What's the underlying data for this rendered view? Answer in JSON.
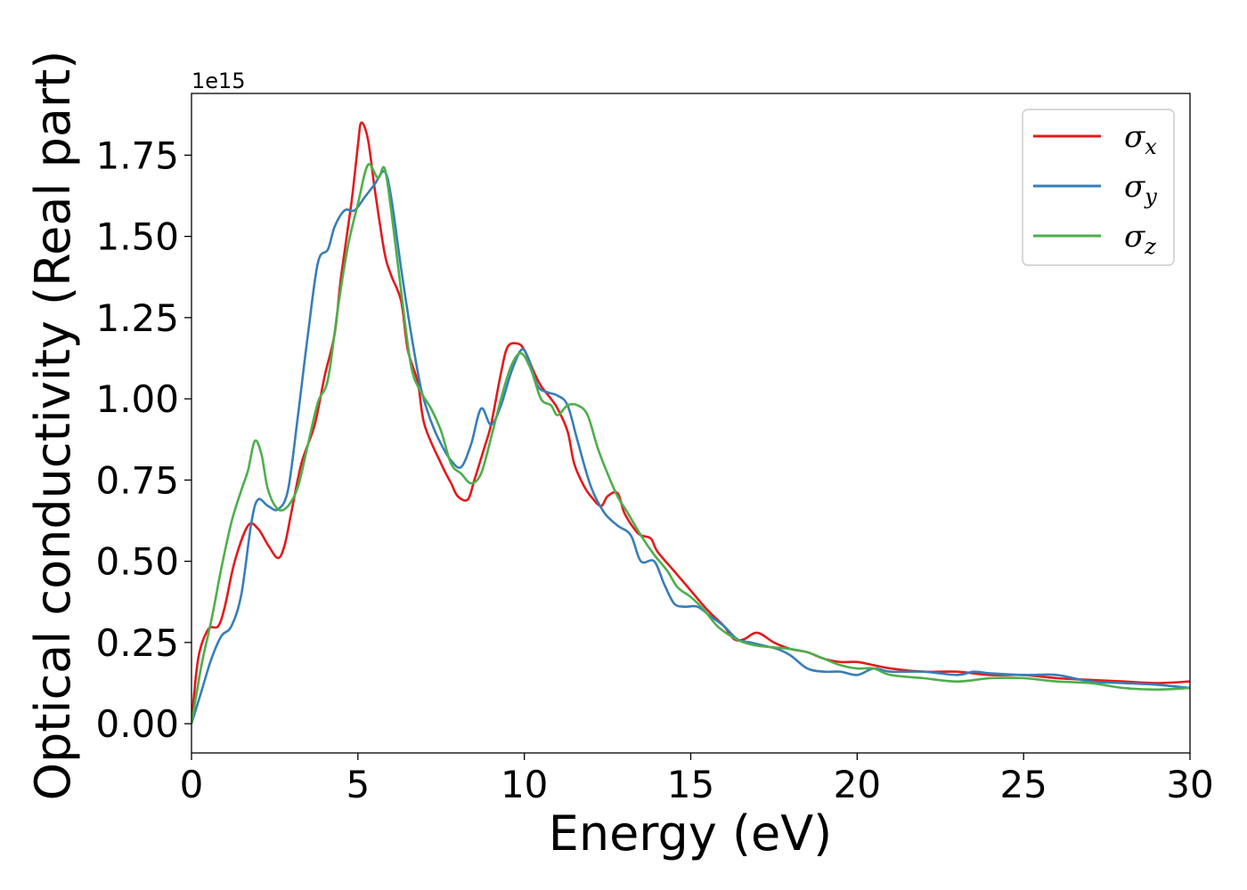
{
  "chart_data": {
    "type": "line",
    "title": "",
    "xlabel": "Energy (eV)",
    "ylabel": "Optical conductivity (Real part)",
    "y_offset_text": "1e15",
    "xlim": [
      0,
      30
    ],
    "ylim": [
      -0.09,
      1.94
    ],
    "x_ticks": [
      0,
      5,
      10,
      15,
      20,
      25,
      30
    ],
    "y_ticks": [
      0.0,
      0.25,
      0.5,
      0.75,
      1.0,
      1.25,
      1.5,
      1.75
    ],
    "x_tick_labels": [
      "0",
      "5",
      "10",
      "15",
      "20",
      "25",
      "30"
    ],
    "y_tick_labels": [
      "0.00",
      "0.25",
      "0.50",
      "0.75",
      "1.00",
      "1.25",
      "1.50",
      "1.75"
    ],
    "grid": false,
    "legend_position": "top-right",
    "series": [
      {
        "name": "σx",
        "symbol": "σ",
        "subscript": "x",
        "color": "#e41a1c",
        "points": [
          [
            0,
            0.0
          ],
          [
            0.2,
            0.2
          ],
          [
            0.5,
            0.29
          ],
          [
            0.8,
            0.3
          ],
          [
            1.0,
            0.36
          ],
          [
            1.3,
            0.5
          ],
          [
            1.7,
            0.61
          ],
          [
            2.0,
            0.6
          ],
          [
            2.3,
            0.55
          ],
          [
            2.6,
            0.51
          ],
          [
            2.8,
            0.55
          ],
          [
            3.0,
            0.65
          ],
          [
            3.3,
            0.8
          ],
          [
            3.7,
            0.92
          ],
          [
            4.0,
            1.07
          ],
          [
            4.3,
            1.2
          ],
          [
            4.5,
            1.38
          ],
          [
            4.8,
            1.6
          ],
          [
            5.0,
            1.78
          ],
          [
            5.1,
            1.85
          ],
          [
            5.3,
            1.8
          ],
          [
            5.5,
            1.65
          ],
          [
            5.8,
            1.45
          ],
          [
            6.0,
            1.38
          ],
          [
            6.3,
            1.3
          ],
          [
            6.5,
            1.15
          ],
          [
            6.8,
            1.05
          ],
          [
            7.0,
            0.92
          ],
          [
            7.5,
            0.8
          ],
          [
            7.8,
            0.74
          ],
          [
            8.0,
            0.7
          ],
          [
            8.3,
            0.69
          ],
          [
            8.5,
            0.75
          ],
          [
            8.8,
            0.85
          ],
          [
            9.0,
            0.92
          ],
          [
            9.3,
            1.08
          ],
          [
            9.5,
            1.16
          ],
          [
            9.8,
            1.17
          ],
          [
            10.0,
            1.15
          ],
          [
            10.3,
            1.08
          ],
          [
            10.5,
            1.04
          ],
          [
            10.8,
            1.0
          ],
          [
            11.0,
            0.97
          ],
          [
            11.3,
            0.9
          ],
          [
            11.5,
            0.8
          ],
          [
            11.8,
            0.73
          ],
          [
            12.0,
            0.7
          ],
          [
            12.3,
            0.67
          ],
          [
            12.5,
            0.7
          ],
          [
            12.8,
            0.71
          ],
          [
            13.0,
            0.65
          ],
          [
            13.3,
            0.6
          ],
          [
            13.5,
            0.58
          ],
          [
            13.8,
            0.57
          ],
          [
            14.0,
            0.53
          ],
          [
            14.5,
            0.47
          ],
          [
            15.0,
            0.41
          ],
          [
            15.5,
            0.35
          ],
          [
            16.0,
            0.3
          ],
          [
            16.3,
            0.26
          ],
          [
            16.6,
            0.26
          ],
          [
            17.0,
            0.28
          ],
          [
            17.5,
            0.25
          ],
          [
            18.0,
            0.23
          ],
          [
            18.5,
            0.22
          ],
          [
            19.0,
            0.2
          ],
          [
            19.5,
            0.19
          ],
          [
            20.0,
            0.19
          ],
          [
            20.5,
            0.18
          ],
          [
            21.0,
            0.17
          ],
          [
            22.0,
            0.16
          ],
          [
            23.0,
            0.16
          ],
          [
            24.0,
            0.15
          ],
          [
            25.0,
            0.15
          ],
          [
            26.0,
            0.14
          ],
          [
            27.0,
            0.135
          ],
          [
            28.0,
            0.13
          ],
          [
            29.0,
            0.125
          ],
          [
            30.0,
            0.13
          ]
        ]
      },
      {
        "name": "σy",
        "symbol": "σ",
        "subscript": "y",
        "color": "#377eb8",
        "points": [
          [
            0,
            0.0
          ],
          [
            0.3,
            0.1
          ],
          [
            0.6,
            0.2
          ],
          [
            0.9,
            0.27
          ],
          [
            1.2,
            0.3
          ],
          [
            1.5,
            0.4
          ],
          [
            1.8,
            0.62
          ],
          [
            2.0,
            0.69
          ],
          [
            2.3,
            0.67
          ],
          [
            2.6,
            0.66
          ],
          [
            2.9,
            0.72
          ],
          [
            3.2,
            0.95
          ],
          [
            3.5,
            1.2
          ],
          [
            3.8,
            1.42
          ],
          [
            4.1,
            1.46
          ],
          [
            4.3,
            1.53
          ],
          [
            4.6,
            1.58
          ],
          [
            4.9,
            1.58
          ],
          [
            5.2,
            1.62
          ],
          [
            5.5,
            1.66
          ],
          [
            5.8,
            1.7
          ],
          [
            6.0,
            1.62
          ],
          [
            6.3,
            1.4
          ],
          [
            6.6,
            1.2
          ],
          [
            6.9,
            1.03
          ],
          [
            7.2,
            0.93
          ],
          [
            7.5,
            0.86
          ],
          [
            7.8,
            0.81
          ],
          [
            8.1,
            0.79
          ],
          [
            8.4,
            0.86
          ],
          [
            8.7,
            0.97
          ],
          [
            9.0,
            0.92
          ],
          [
            9.3,
            0.98
          ],
          [
            9.6,
            1.08
          ],
          [
            9.9,
            1.15
          ],
          [
            10.1,
            1.13
          ],
          [
            10.4,
            1.04
          ],
          [
            10.7,
            1.02
          ],
          [
            11.0,
            1.01
          ],
          [
            11.3,
            0.98
          ],
          [
            11.6,
            0.87
          ],
          [
            12.0,
            0.73
          ],
          [
            12.4,
            0.65
          ],
          [
            12.8,
            0.61
          ],
          [
            13.2,
            0.58
          ],
          [
            13.5,
            0.5
          ],
          [
            13.9,
            0.5
          ],
          [
            14.2,
            0.43
          ],
          [
            14.5,
            0.37
          ],
          [
            14.8,
            0.36
          ],
          [
            15.2,
            0.36
          ],
          [
            15.6,
            0.33
          ],
          [
            16.0,
            0.3
          ],
          [
            16.4,
            0.26
          ],
          [
            16.8,
            0.25
          ],
          [
            17.2,
            0.24
          ],
          [
            17.6,
            0.23
          ],
          [
            18.0,
            0.21
          ],
          [
            18.5,
            0.17
          ],
          [
            19.0,
            0.16
          ],
          [
            19.5,
            0.16
          ],
          [
            20.0,
            0.15
          ],
          [
            20.5,
            0.17
          ],
          [
            21.0,
            0.16
          ],
          [
            22.0,
            0.16
          ],
          [
            23.0,
            0.15
          ],
          [
            23.5,
            0.16
          ],
          [
            24.0,
            0.155
          ],
          [
            25.0,
            0.15
          ],
          [
            26.0,
            0.15
          ],
          [
            27.0,
            0.13
          ],
          [
            28.0,
            0.125
          ],
          [
            29.0,
            0.12
          ],
          [
            30.0,
            0.11
          ]
        ]
      },
      {
        "name": "σz",
        "symbol": "σ",
        "subscript": "z",
        "color": "#4daf4a",
        "points": [
          [
            0,
            0.0
          ],
          [
            0.3,
            0.18
          ],
          [
            0.6,
            0.32
          ],
          [
            0.9,
            0.48
          ],
          [
            1.2,
            0.62
          ],
          [
            1.5,
            0.72
          ],
          [
            1.7,
            0.78
          ],
          [
            1.9,
            0.87
          ],
          [
            2.1,
            0.83
          ],
          [
            2.3,
            0.72
          ],
          [
            2.6,
            0.66
          ],
          [
            2.9,
            0.67
          ],
          [
            3.2,
            0.73
          ],
          [
            3.5,
            0.86
          ],
          [
            3.8,
            0.99
          ],
          [
            4.1,
            1.06
          ],
          [
            4.4,
            1.28
          ],
          [
            4.7,
            1.47
          ],
          [
            5.0,
            1.6
          ],
          [
            5.3,
            1.72
          ],
          [
            5.6,
            1.68
          ],
          [
            5.8,
            1.71
          ],
          [
            6.0,
            1.58
          ],
          [
            6.3,
            1.33
          ],
          [
            6.6,
            1.1
          ],
          [
            6.9,
            1.02
          ],
          [
            7.2,
            0.97
          ],
          [
            7.5,
            0.9
          ],
          [
            7.8,
            0.8
          ],
          [
            8.1,
            0.77
          ],
          [
            8.4,
            0.74
          ],
          [
            8.7,
            0.77
          ],
          [
            9.0,
            0.88
          ],
          [
            9.3,
            1.0
          ],
          [
            9.6,
            1.1
          ],
          [
            9.9,
            1.14
          ],
          [
            10.2,
            1.09
          ],
          [
            10.5,
            1.0
          ],
          [
            10.8,
            0.98
          ],
          [
            11.0,
            0.95
          ],
          [
            11.3,
            0.98
          ],
          [
            11.6,
            0.98
          ],
          [
            11.9,
            0.95
          ],
          [
            12.2,
            0.85
          ],
          [
            12.5,
            0.77
          ],
          [
            12.8,
            0.7
          ],
          [
            13.1,
            0.65
          ],
          [
            13.5,
            0.58
          ],
          [
            13.9,
            0.52
          ],
          [
            14.3,
            0.47
          ],
          [
            14.6,
            0.42
          ],
          [
            15.0,
            0.39
          ],
          [
            15.4,
            0.35
          ],
          [
            15.8,
            0.3
          ],
          [
            16.2,
            0.27
          ],
          [
            16.6,
            0.25
          ],
          [
            17.0,
            0.24
          ],
          [
            17.5,
            0.235
          ],
          [
            18.0,
            0.23
          ],
          [
            18.5,
            0.22
          ],
          [
            19.0,
            0.2
          ],
          [
            19.5,
            0.18
          ],
          [
            20.0,
            0.17
          ],
          [
            20.5,
            0.17
          ],
          [
            21.0,
            0.15
          ],
          [
            22.0,
            0.14
          ],
          [
            23.0,
            0.13
          ],
          [
            24.0,
            0.14
          ],
          [
            25.0,
            0.14
          ],
          [
            26.0,
            0.13
          ],
          [
            27.0,
            0.125
          ],
          [
            28.0,
            0.11
          ],
          [
            29.0,
            0.105
          ],
          [
            30.0,
            0.11
          ]
        ]
      }
    ]
  }
}
